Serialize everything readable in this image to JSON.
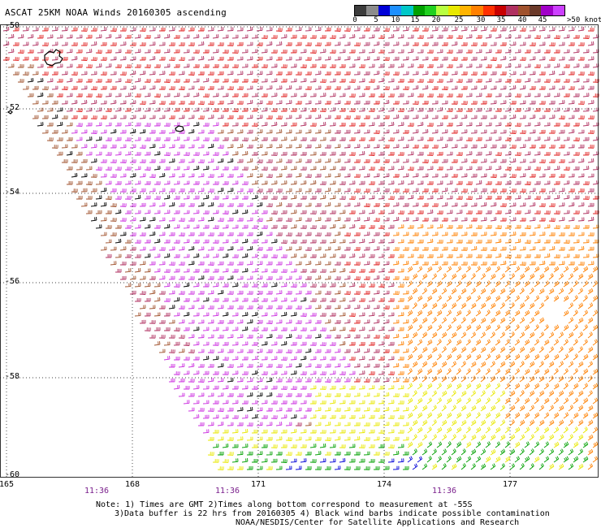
{
  "title": "ASCAT 25KM NOAA Winds 20160305 ascending",
  "colorbar": {
    "ticks": [
      "0",
      "5",
      "10",
      "15",
      "20",
      "25",
      "30",
      "35",
      "40",
      "45"
    ],
    "units": ">50 knots",
    "colors": [
      "#3c3c3c",
      "#8c8c8c",
      "#0000d8",
      "#1e90ff",
      "#00c8c8",
      "#00a000",
      "#20d020",
      "#b8ff40",
      "#e8e800",
      "#ffb400",
      "#ff8000",
      "#ff3000",
      "#c80000",
      "#b03060",
      "#a0522d",
      "#6b3a2a",
      "#a000c8",
      "#cc40ff"
    ]
  },
  "latitudes": [
    "-50",
    "-52",
    "-54",
    "-56",
    "-58",
    "-60"
  ],
  "longitudes": [
    "165",
    "168",
    "171",
    "174",
    "177"
  ],
  "times": [
    "11:36",
    "11:36",
    "11:36"
  ],
  "notes": {
    "line1": "Note: 1) Times are GMT 2)Times along bottom correspond to measurement at -55S",
    "line2": "3)Data buffer is 22 hrs from 20160305 4) Black wind barbs indicate possible contamination",
    "line3": "NOAA/NESDIS/Center for Satellite Applications and Research"
  },
  "wind_field": {
    "description_colors": {
      "calm": "#0000d8",
      "light": "#00a000",
      "moderate": "#e8e800",
      "fresh": "#ff8000",
      "strong": "#e02020",
      "gale": "#b03060",
      "storm": "#a0522d",
      "severe": "#cc30e0",
      "contaminated": "#000000"
    }
  }
}
